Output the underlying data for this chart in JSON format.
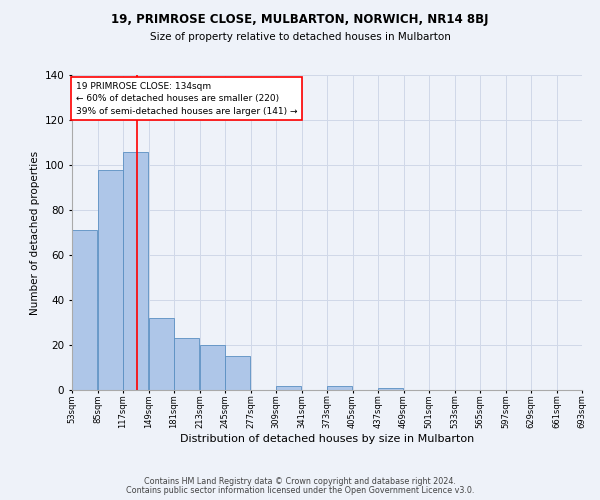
{
  "title1": "19, PRIMROSE CLOSE, MULBARTON, NORWICH, NR14 8BJ",
  "title2": "Size of property relative to detached houses in Mulbarton",
  "xlabel": "Distribution of detached houses by size in Mulbarton",
  "ylabel": "Number of detached properties",
  "bar_values": [
    71,
    98,
    106,
    32,
    23,
    20,
    15,
    0,
    2,
    0,
    2,
    0,
    1,
    0,
    0,
    0,
    0,
    0,
    0,
    0
  ],
  "bin_edges": [
    53,
    85,
    117,
    149,
    181,
    213,
    245,
    277,
    309,
    341,
    373,
    405,
    437,
    469,
    501,
    533,
    565,
    597,
    629,
    661,
    693
  ],
  "bar_color": "#aec6e8",
  "bar_edge_color": "#5a8fc2",
  "grid_color": "#d0d8e8",
  "vline_x": 134,
  "vline_color": "red",
  "annotation_text": "19 PRIMROSE CLOSE: 134sqm\n← 60% of detached houses are smaller (220)\n39% of semi-detached houses are larger (141) →",
  "annotation_box_color": "white",
  "annotation_box_edge": "red",
  "ylim": [
    0,
    140
  ],
  "yticks": [
    0,
    20,
    40,
    60,
    80,
    100,
    120,
    140
  ],
  "x_tick_labels": [
    "53sqm",
    "85sqm",
    "117sqm",
    "149sqm",
    "181sqm",
    "213sqm",
    "245sqm",
    "277sqm",
    "309sqm",
    "341sqm",
    "373sqm",
    "405sqm",
    "437sqm",
    "469sqm",
    "501sqm",
    "533sqm",
    "565sqm",
    "597sqm",
    "629sqm",
    "661sqm",
    "693sqm"
  ],
  "footer1": "Contains HM Land Registry data © Crown copyright and database right 2024.",
  "footer2": "Contains public sector information licensed under the Open Government Licence v3.0.",
  "bg_color": "#eef2f9"
}
